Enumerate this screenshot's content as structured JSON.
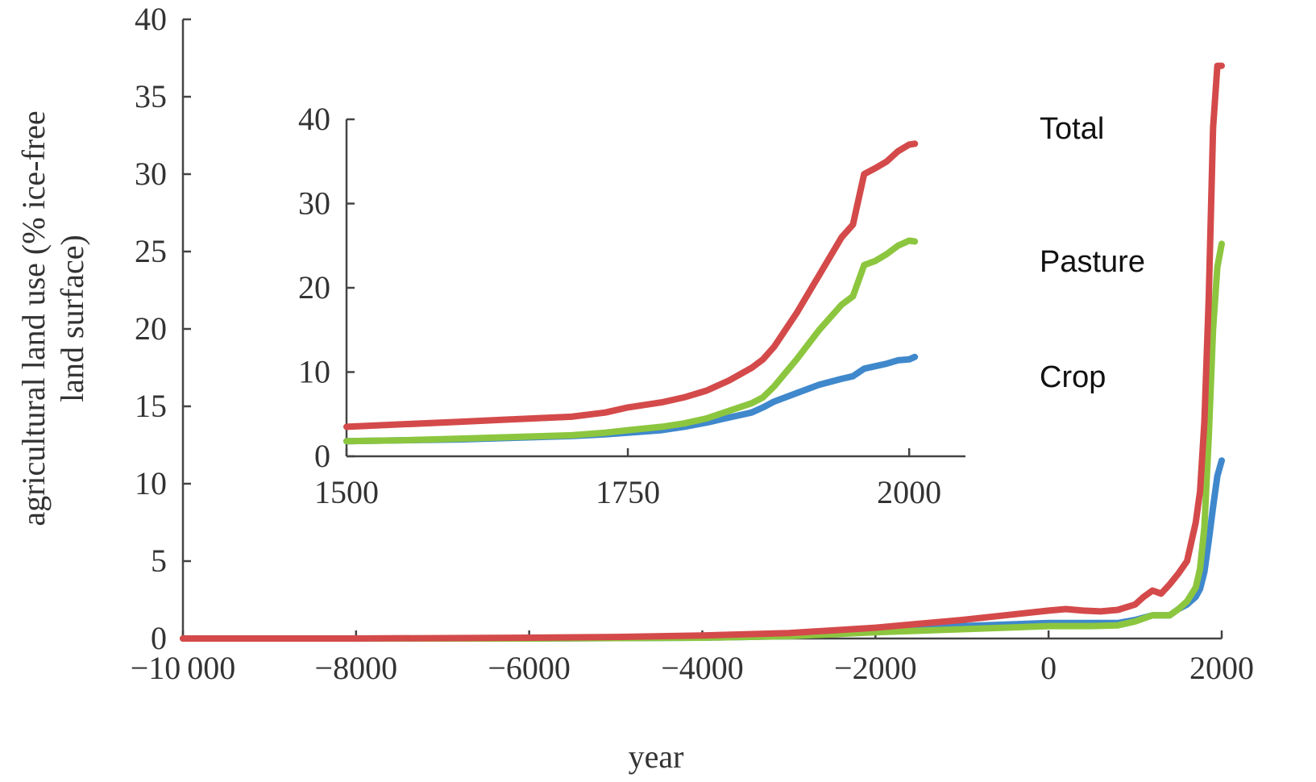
{
  "chart_data": [
    {
      "type": "line",
      "title": "",
      "xlabel": "year",
      "ylabel_lines": [
        "agricultural land use (% ice-free",
        "land surface)"
      ],
      "xlim": [
        -10000,
        2000
      ],
      "ylim": [
        0,
        40
      ],
      "xticks": [
        -10000,
        -8000,
        -6000,
        -4000,
        -2000,
        0,
        2000
      ],
      "xtick_labels": [
        "−10 000",
        "−8000",
        "−6000",
        "−4000",
        "−2000",
        "0",
        "2000"
      ],
      "yticks": [
        0,
        5,
        10,
        15,
        20,
        25,
        30,
        35,
        40
      ],
      "ytick_labels": [
        "0",
        "5",
        "10",
        "15",
        "20",
        "25",
        "30",
        "35",
        "40"
      ],
      "grid": false,
      "legend": "series labels to the right of the plot",
      "series": [
        {
          "name": "Total",
          "color": "#d44a4a",
          "x": [
            -10000,
            -8000,
            -6000,
            -5000,
            -4000,
            -3000,
            -2000,
            -1000,
            -500,
            0,
            200,
            400,
            600,
            800,
            1000,
            1100,
            1200,
            1300,
            1400,
            1500,
            1600,
            1700,
            1750,
            1800,
            1850,
            1900,
            1950,
            2000
          ],
          "y": [
            0,
            0,
            0.05,
            0.1,
            0.2,
            0.35,
            0.7,
            1.2,
            1.5,
            1.8,
            1.9,
            1.8,
            1.75,
            1.85,
            2.2,
            2.7,
            3.1,
            2.9,
            3.5,
            4.2,
            5.0,
            7.5,
            9.5,
            14,
            22,
            33,
            37,
            37
          ]
        },
        {
          "name": "Pasture",
          "color": "#8cc63f",
          "x": [
            -10000,
            -6000,
            -4000,
            -3000,
            -2000,
            -1000,
            0,
            500,
            800,
            1000,
            1200,
            1400,
            1500,
            1600,
            1700,
            1750,
            1800,
            1850,
            1900,
            1950,
            2000
          ],
          "y": [
            0,
            0,
            0.05,
            0.15,
            0.4,
            0.6,
            0.8,
            0.8,
            0.85,
            1.1,
            1.5,
            1.5,
            1.9,
            2.4,
            3.3,
            4.5,
            7.2,
            13,
            20,
            24,
            25.5
          ]
        },
        {
          "name": "Crop",
          "color": "#3f88cc",
          "x": [
            -10000,
            -6000,
            -4000,
            -3000,
            -2000,
            -1000,
            0,
            500,
            800,
            1000,
            1200,
            1400,
            1500,
            1600,
            1700,
            1750,
            1800,
            1850,
            1900,
            1950,
            2000
          ],
          "y": [
            0,
            0,
            0.05,
            0.15,
            0.5,
            0.8,
            1.0,
            1.0,
            1.0,
            1.2,
            1.5,
            1.5,
            1.9,
            2.2,
            2.7,
            3.2,
            4.3,
            6.3,
            8.5,
            10.5,
            11.5
          ]
        }
      ]
    },
    {
      "type": "line",
      "title": "",
      "xlabel": "",
      "ylabel": "",
      "xlim": [
        1500,
        2050
      ],
      "ylim": [
        0,
        40
      ],
      "xticks": [
        1500,
        1750,
        2000
      ],
      "xtick_labels": [
        "1500",
        "1750",
        "2000"
      ],
      "yticks": [
        0,
        10,
        20,
        30,
        40
      ],
      "ytick_labels": [
        "0",
        "10",
        "20",
        "30",
        "40"
      ],
      "grid": false,
      "legend": "none",
      "series": [
        {
          "name": "Total",
          "color": "#d44a4a",
          "x": [
            1500,
            1550,
            1600,
            1650,
            1700,
            1730,
            1750,
            1780,
            1800,
            1820,
            1840,
            1860,
            1870,
            1880,
            1900,
            1920,
            1940,
            1950,
            1960,
            1970,
            1980,
            1990,
            2000,
            2005
          ],
          "y": [
            3.5,
            3.8,
            4.1,
            4.4,
            4.7,
            5.2,
            5.8,
            6.4,
            7.0,
            7.8,
            9.0,
            10.5,
            11.5,
            13.0,
            17.0,
            21.5,
            26.0,
            27.5,
            33.5,
            34.2,
            35.0,
            36.2,
            37.0,
            37.1
          ]
        },
        {
          "name": "Pasture",
          "color": "#8cc63f",
          "x": [
            1500,
            1550,
            1600,
            1650,
            1700,
            1730,
            1750,
            1780,
            1800,
            1820,
            1840,
            1860,
            1870,
            1880,
            1900,
            1920,
            1940,
            1950,
            1960,
            1970,
            1980,
            1990,
            2000,
            2005
          ],
          "y": [
            1.8,
            1.9,
            2.1,
            2.3,
            2.5,
            2.8,
            3.1,
            3.5,
            3.9,
            4.5,
            5.4,
            6.3,
            7.0,
            8.3,
            11.5,
            15.0,
            18.0,
            19.0,
            22.7,
            23.2,
            24.0,
            25.0,
            25.6,
            25.5
          ]
        },
        {
          "name": "Crop",
          "color": "#3f88cc",
          "x": [
            1500,
            1550,
            1600,
            1650,
            1700,
            1730,
            1750,
            1780,
            1800,
            1820,
            1840,
            1860,
            1870,
            1880,
            1900,
            1920,
            1940,
            1950,
            1960,
            1970,
            1980,
            1990,
            2000,
            2005
          ],
          "y": [
            1.8,
            1.9,
            2.0,
            2.2,
            2.4,
            2.6,
            2.8,
            3.1,
            3.5,
            4.0,
            4.6,
            5.2,
            5.8,
            6.5,
            7.5,
            8.5,
            9.2,
            9.5,
            10.4,
            10.7,
            11.0,
            11.4,
            11.5,
            11.8
          ]
        }
      ]
    }
  ]
}
